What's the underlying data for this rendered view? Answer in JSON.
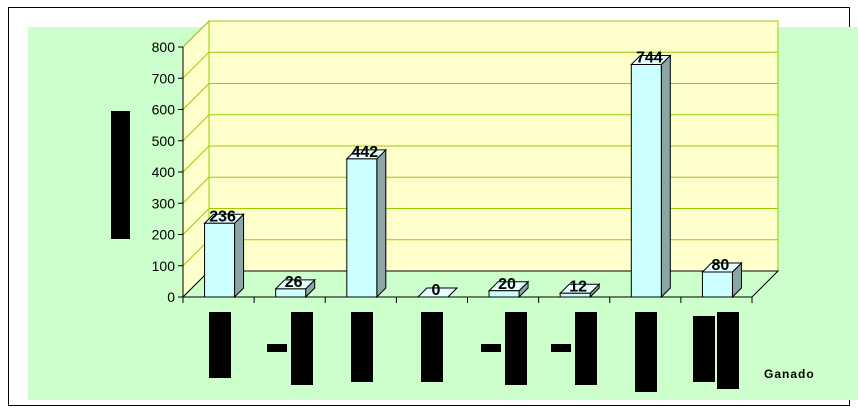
{
  "chart_data": {
    "type": "bar",
    "categories": [
      "",
      "",
      "",
      "",
      "",
      "",
      "",
      ""
    ],
    "values": [
      236,
      26,
      442,
      0,
      20,
      12,
      744,
      80
    ],
    "data_labels": [
      "236",
      "26",
      "442",
      "0",
      "20",
      "12",
      "744",
      "80"
    ],
    "title": "",
    "xlabel": "Ganado",
    "ylabel": "",
    "ylim": [
      0,
      800
    ],
    "yticks": [
      "0",
      "100",
      "200",
      "300",
      "400",
      "500",
      "600",
      "700",
      "800"
    ],
    "grid": true,
    "legend": "none",
    "colors": {
      "bar_front": "#ccffff",
      "bar_top": "#e6ffff",
      "bar_side": "#8aa6a6",
      "plot_wall": "#ffffcc",
      "chart_background": "#ccffcc",
      "grid": "#99cc00"
    }
  }
}
